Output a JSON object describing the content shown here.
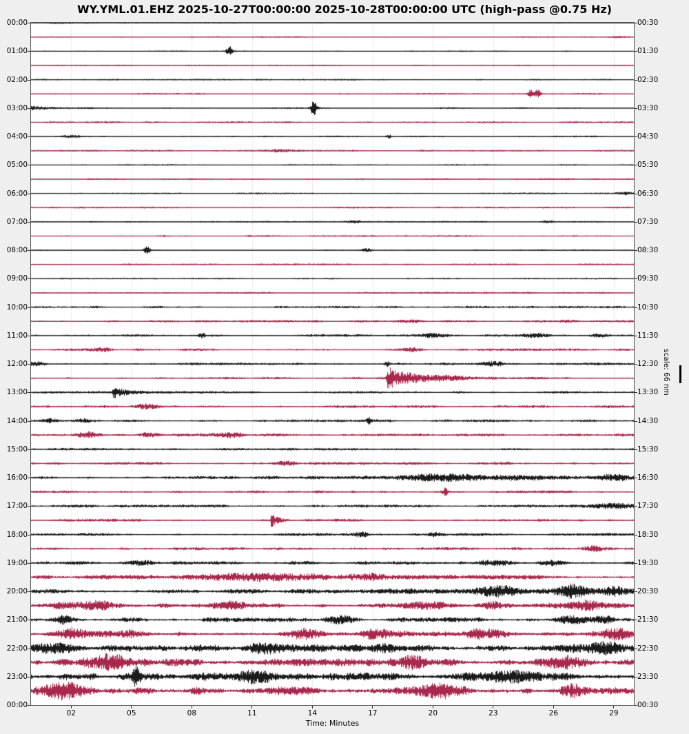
{
  "title": "WY.YML.01.EHZ 2025-10-27T00:00:00 2025-10-28T00:00:00 UTC (high-pass @0.75 Hz)",
  "scale_label": "scale: 66 nm",
  "colors": {
    "background": "#efefef",
    "plot_background": "#ffffff",
    "trace_black": "#1b1b1b",
    "trace_red": "#a8294d",
    "grid": "#c9c9c9",
    "frame": "#555555",
    "text": "#000000"
  },
  "x_axis": {
    "label": "Time: Minutes",
    "tick_labels": [
      "02",
      "05",
      "08",
      "11",
      "14",
      "17",
      "20",
      "23",
      "26",
      "29"
    ],
    "tick_minutes": [
      2,
      5,
      8,
      11,
      14,
      17,
      20,
      23,
      26,
      29
    ],
    "range_minutes": [
      0,
      30
    ],
    "grid": "dotted-vertical"
  },
  "left_axis_labels": [
    "00:00",
    "01:00",
    "02:00",
    "03:00",
    "04:00",
    "05:00",
    "06:00",
    "07:00",
    "08:00",
    "09:00",
    "10:00",
    "11:00",
    "12:00",
    "13:00",
    "14:00",
    "15:00",
    "16:00",
    "17:00",
    "18:00",
    "19:00",
    "20:00",
    "21:00",
    "22:00",
    "23:00",
    "00:00"
  ],
  "right_axis_labels": [
    "00:30",
    "01:30",
    "02:30",
    "03:30",
    "04:30",
    "05:30",
    "06:30",
    "07:30",
    "08:30",
    "09:30",
    "10:30",
    "11:30",
    "12:30",
    "13:30",
    "14:30",
    "15:30",
    "16:30",
    "17:30",
    "18:30",
    "19:30",
    "20:30",
    "21:30",
    "22:30",
    "23:30",
    "00:30"
  ],
  "chart_data": {
    "type": "line",
    "subtype": "helicorder-dayplot",
    "station": "WY.YML.01.EHZ",
    "start": "2025-10-27T00:00:00",
    "end": "2025-10-28T00:00:00",
    "timezone": "UTC",
    "filter": "high-pass @0.75 Hz",
    "scale": "66 nm",
    "minutes_per_row": 30,
    "rows_total": 48,
    "legend": "none",
    "rows": [
      {
        "start": "00:00",
        "color": "black",
        "noise": 0.9,
        "events": [
          {
            "type": "burst",
            "m": 1.5,
            "a": 1.3,
            "w": 0.8
          }
        ]
      },
      {
        "start": "00:30",
        "color": "red",
        "noise": 0.75,
        "events": [
          {
            "type": "burst",
            "m": 29.3,
            "a": 1.2,
            "w": 0.4
          }
        ]
      },
      {
        "start": "01:00",
        "color": "black",
        "noise": 0.7,
        "events": [
          {
            "type": "spike",
            "m": 9.85,
            "a": 7
          }
        ]
      },
      {
        "start": "01:30",
        "color": "red",
        "noise": 0.75,
        "events": []
      },
      {
        "start": "02:00",
        "color": "black",
        "noise": 0.8,
        "events": []
      },
      {
        "start": "02:30",
        "color": "red",
        "noise": 0.8,
        "events": [
          {
            "type": "spike",
            "m": 24.85,
            "a": 5
          },
          {
            "type": "spike",
            "m": 25.2,
            "a": 5.5
          }
        ]
      },
      {
        "start": "03:00",
        "color": "black",
        "noise": 0.9,
        "events": [
          {
            "type": "quake",
            "m": 0,
            "a": 2.5,
            "tau": 1.2
          },
          {
            "type": "spike",
            "m": 14.05,
            "a": 9
          }
        ]
      },
      {
        "start": "03:30",
        "color": "red",
        "noise": 1.0,
        "events": []
      },
      {
        "start": "04:00",
        "color": "black",
        "noise": 0.85,
        "events": [
          {
            "type": "burst",
            "m": 2.0,
            "a": 1.2,
            "w": 0.3
          },
          {
            "type": "spike",
            "m": 17.8,
            "a": 2.5
          }
        ]
      },
      {
        "start": "04:30",
        "color": "red",
        "noise": 0.9,
        "events": [
          {
            "type": "burst",
            "m": 12.5,
            "a": 1.3,
            "w": 0.5
          }
        ]
      },
      {
        "start": "05:00",
        "color": "black",
        "noise": 0.8,
        "events": []
      },
      {
        "start": "05:30",
        "color": "red",
        "noise": 0.9,
        "events": []
      },
      {
        "start": "06:00",
        "color": "black",
        "noise": 0.8,
        "events": [
          {
            "type": "burst",
            "m": 29.5,
            "a": 1.5,
            "w": 0.3
          }
        ]
      },
      {
        "start": "06:30",
        "color": "red",
        "noise": 0.9,
        "events": []
      },
      {
        "start": "07:00",
        "color": "black",
        "noise": 0.8,
        "events": [
          {
            "type": "burst",
            "m": 16.1,
            "a": 1.8,
            "w": 0.25
          },
          {
            "type": "burst",
            "m": 25.7,
            "a": 1.6,
            "w": 0.25
          }
        ]
      },
      {
        "start": "07:30",
        "color": "red",
        "noise": 0.9,
        "events": []
      },
      {
        "start": "08:00",
        "color": "black",
        "noise": 0.8,
        "events": [
          {
            "type": "spike",
            "m": 5.75,
            "a": 6.5
          },
          {
            "type": "burst",
            "m": 16.7,
            "a": 1.8,
            "w": 0.2
          }
        ]
      },
      {
        "start": "08:30",
        "color": "red",
        "noise": 0.9,
        "events": []
      },
      {
        "start": "09:00",
        "color": "black",
        "noise": 0.8,
        "events": []
      },
      {
        "start": "09:30",
        "color": "red",
        "noise": 0.95,
        "events": []
      },
      {
        "start": "10:00",
        "color": "black",
        "noise": 1.2,
        "events": []
      },
      {
        "start": "10:30",
        "color": "red",
        "noise": 1.25,
        "events": [
          {
            "type": "burst",
            "m": 19,
            "a": 1.8,
            "w": 0.4
          },
          {
            "type": "burst",
            "m": 26.6,
            "a": 1.8,
            "w": 0.4
          }
        ]
      },
      {
        "start": "11:00",
        "color": "black",
        "noise": 1.25,
        "events": [
          {
            "type": "spike",
            "m": 8.5,
            "a": 3
          },
          {
            "type": "burst",
            "m": 20,
            "a": 2.2,
            "w": 0.4
          },
          {
            "type": "burst",
            "m": 25.2,
            "a": 2.5,
            "w": 0.5
          },
          {
            "type": "burst",
            "m": 28.3,
            "a": 2,
            "w": 0.4
          }
        ]
      },
      {
        "start": "11:30",
        "color": "red",
        "noise": 1.25,
        "events": [
          {
            "type": "burst",
            "m": 3.5,
            "a": 2,
            "w": 0.4
          },
          {
            "type": "burst",
            "m": 19,
            "a": 2,
            "w": 0.3
          }
        ]
      },
      {
        "start": "12:00",
        "color": "black",
        "noise": 1.35,
        "events": [
          {
            "type": "burst",
            "m": 0.3,
            "a": 2.6,
            "w": 0.3
          },
          {
            "type": "spike",
            "m": 17.7,
            "a": 2.8
          },
          {
            "type": "burst",
            "m": 23,
            "a": 2.4,
            "w": 0.4
          }
        ]
      },
      {
        "start": "12:30",
        "color": "red",
        "noise": 1.2,
        "events": [
          {
            "type": "quake",
            "m": 17.72,
            "a": 14,
            "tau": 1.0
          },
          {
            "type": "burst",
            "m": 20.5,
            "a": 2,
            "w": 2.0
          }
        ]
      },
      {
        "start": "13:00",
        "color": "black",
        "noise": 1.25,
        "events": [
          {
            "type": "quake",
            "m": 4.08,
            "a": 8,
            "tau": 0.55
          }
        ]
      },
      {
        "start": "13:30",
        "color": "red",
        "noise": 1.45,
        "events": [
          {
            "type": "burst",
            "m": 5.8,
            "a": 2.4,
            "w": 0.4
          }
        ]
      },
      {
        "start": "14:00",
        "color": "black",
        "noise": 1.35,
        "events": [
          {
            "type": "burst",
            "m": 0.9,
            "a": 2.6,
            "w": 0.3
          },
          {
            "type": "burst",
            "m": 2.6,
            "a": 2.4,
            "w": 0.3
          },
          {
            "type": "spike",
            "m": 16.8,
            "a": 3
          }
        ]
      },
      {
        "start": "14:30",
        "color": "red",
        "noise": 1.55,
        "events": [
          {
            "type": "burst",
            "m": 2.8,
            "a": 3,
            "w": 0.4
          },
          {
            "type": "burst",
            "m": 5.9,
            "a": 2.8,
            "w": 0.4
          },
          {
            "type": "burst",
            "m": 9.8,
            "a": 2.4,
            "w": 0.5
          }
        ]
      },
      {
        "start": "15:00",
        "color": "black",
        "noise": 1.3,
        "events": []
      },
      {
        "start": "15:30",
        "color": "red",
        "noise": 1.5,
        "events": [
          {
            "type": "burst",
            "m": 12.7,
            "a": 2.6,
            "w": 0.3
          }
        ]
      },
      {
        "start": "16:00",
        "color": "black",
        "noise": 1.6,
        "events": [
          {
            "type": "burst",
            "m": 23,
            "a": 2.0,
            "w": 4.5
          },
          {
            "type": "burst",
            "m": 20,
            "a": 2.8,
            "w": 1.2
          },
          {
            "type": "burst",
            "m": 29,
            "a": 2.8,
            "w": 0.6
          }
        ]
      },
      {
        "start": "16:30",
        "color": "red",
        "noise": 1.4,
        "events": [
          {
            "type": "spike",
            "m": 20.6,
            "a": 4.5
          }
        ]
      },
      {
        "start": "17:00",
        "color": "black",
        "noise": 1.5,
        "events": [
          {
            "type": "burst",
            "m": 29,
            "a": 2.6,
            "w": 0.8
          }
        ]
      },
      {
        "start": "17:30",
        "color": "red",
        "noise": 1.55,
        "events": [
          {
            "type": "quake",
            "m": 11.95,
            "a": 8.5,
            "tau": 0.3
          }
        ]
      },
      {
        "start": "18:00",
        "color": "black",
        "noise": 1.5,
        "events": [
          {
            "type": "burst",
            "m": 16.4,
            "a": 2.8,
            "w": 0.3
          },
          {
            "type": "burst",
            "m": 20.2,
            "a": 2.8,
            "w": 0.3
          }
        ]
      },
      {
        "start": "18:30",
        "color": "red",
        "noise": 1.6,
        "events": [
          {
            "type": "burst",
            "m": 28,
            "a": 2.6,
            "w": 0.4
          }
        ]
      },
      {
        "start": "19:00",
        "color": "black",
        "noise": 2.0,
        "events": [
          {
            "type": "burst",
            "m": 5.5,
            "a": 3,
            "w": 0.5
          },
          {
            "type": "burst",
            "m": 23,
            "a": 3,
            "w": 0.6
          },
          {
            "type": "burst",
            "m": 26,
            "a": 3,
            "w": 0.4
          }
        ]
      },
      {
        "start": "19:30",
        "color": "red",
        "noise": 2.4,
        "events": [
          {
            "type": "burst",
            "m": 11.5,
            "a": 3.2,
            "w": 2.2
          },
          {
            "type": "burst",
            "m": 17,
            "a": 4,
            "w": 0.7
          }
        ]
      },
      {
        "start": "20:00",
        "color": "black",
        "noise": 2.2,
        "events": [
          {
            "type": "burst",
            "m": 22,
            "a": 2.2,
            "w": 5
          },
          {
            "type": "burst",
            "m": 23.3,
            "a": 5,
            "w": 0.6
          },
          {
            "type": "burst",
            "m": 26.9,
            "a": 6.5,
            "w": 0.4
          },
          {
            "type": "burst",
            "m": 29,
            "a": 4,
            "w": 0.4
          }
        ]
      },
      {
        "start": "20:30",
        "color": "red",
        "noise": 2.7,
        "events": [
          {
            "type": "burst",
            "m": 1.8,
            "a": 4,
            "w": 0.8
          },
          {
            "type": "burst",
            "m": 3.3,
            "a": 4,
            "w": 0.5
          },
          {
            "type": "burst",
            "m": 10,
            "a": 3.5,
            "w": 0.5
          },
          {
            "type": "burst",
            "m": 19.5,
            "a": 4.5,
            "w": 0.8
          },
          {
            "type": "burst",
            "m": 23,
            "a": 4,
            "w": 0.5
          },
          {
            "type": "burst",
            "m": 27.6,
            "a": 4.5,
            "w": 0.5
          }
        ]
      },
      {
        "start": "21:00",
        "color": "black",
        "noise": 2.4,
        "events": [
          {
            "type": "burst",
            "m": 1.7,
            "a": 4,
            "w": 0.4
          },
          {
            "type": "burst",
            "m": 15.3,
            "a": 4,
            "w": 0.5
          },
          {
            "type": "burst",
            "m": 27,
            "a": 5,
            "w": 0.6
          },
          {
            "type": "burst",
            "m": 28.5,
            "a": 4,
            "w": 0.4
          }
        ]
      },
      {
        "start": "21:30",
        "color": "red",
        "noise": 3.1,
        "events": [
          {
            "type": "burst",
            "m": 2,
            "a": 4.5,
            "w": 0.6
          },
          {
            "type": "burst",
            "m": 5,
            "a": 4,
            "w": 0.5
          },
          {
            "type": "burst",
            "m": 13.8,
            "a": 4.5,
            "w": 0.6
          },
          {
            "type": "burst",
            "m": 17,
            "a": 4.5,
            "w": 0.5
          },
          {
            "type": "burst",
            "m": 22.5,
            "a": 4.5,
            "w": 0.5
          },
          {
            "type": "burst",
            "m": 29,
            "a": 5,
            "w": 0.5
          }
        ]
      },
      {
        "start": "22:00",
        "color": "black",
        "noise": 3.9,
        "events": [
          {
            "type": "burst",
            "m": 1.2,
            "a": 6,
            "w": 0.8
          },
          {
            "type": "burst",
            "m": 11.5,
            "a": 6,
            "w": 0.5
          },
          {
            "type": "burst",
            "m": 17.5,
            "a": 5,
            "w": 0.5
          },
          {
            "type": "burst",
            "m": 28.6,
            "a": 6.5,
            "w": 0.8
          }
        ]
      },
      {
        "start": "22:30",
        "color": "red",
        "noise": 3.9,
        "events": [
          {
            "type": "burst",
            "m": 3.9,
            "a": 7,
            "w": 0.7
          },
          {
            "type": "burst",
            "m": 19,
            "a": 6,
            "w": 0.5
          },
          {
            "type": "burst",
            "m": 26.5,
            "a": 5.5,
            "w": 0.6
          }
        ]
      },
      {
        "start": "23:00",
        "color": "black",
        "noise": 4.1,
        "events": [
          {
            "type": "spike",
            "m": 5.2,
            "a": 14
          },
          {
            "type": "burst",
            "m": 11.2,
            "a": 5.5,
            "w": 0.6
          },
          {
            "type": "burst",
            "m": 23.5,
            "a": 5.5,
            "w": 1.5
          }
        ]
      },
      {
        "start": "23:30",
        "color": "red",
        "noise": 4.4,
        "events": [
          {
            "type": "burst",
            "m": 1.6,
            "a": 6.5,
            "w": 0.6
          },
          {
            "type": "burst",
            "m": 20.4,
            "a": 6,
            "w": 0.6
          },
          {
            "type": "burst",
            "m": 27,
            "a": 5.5,
            "w": 0.5
          }
        ]
      }
    ]
  }
}
